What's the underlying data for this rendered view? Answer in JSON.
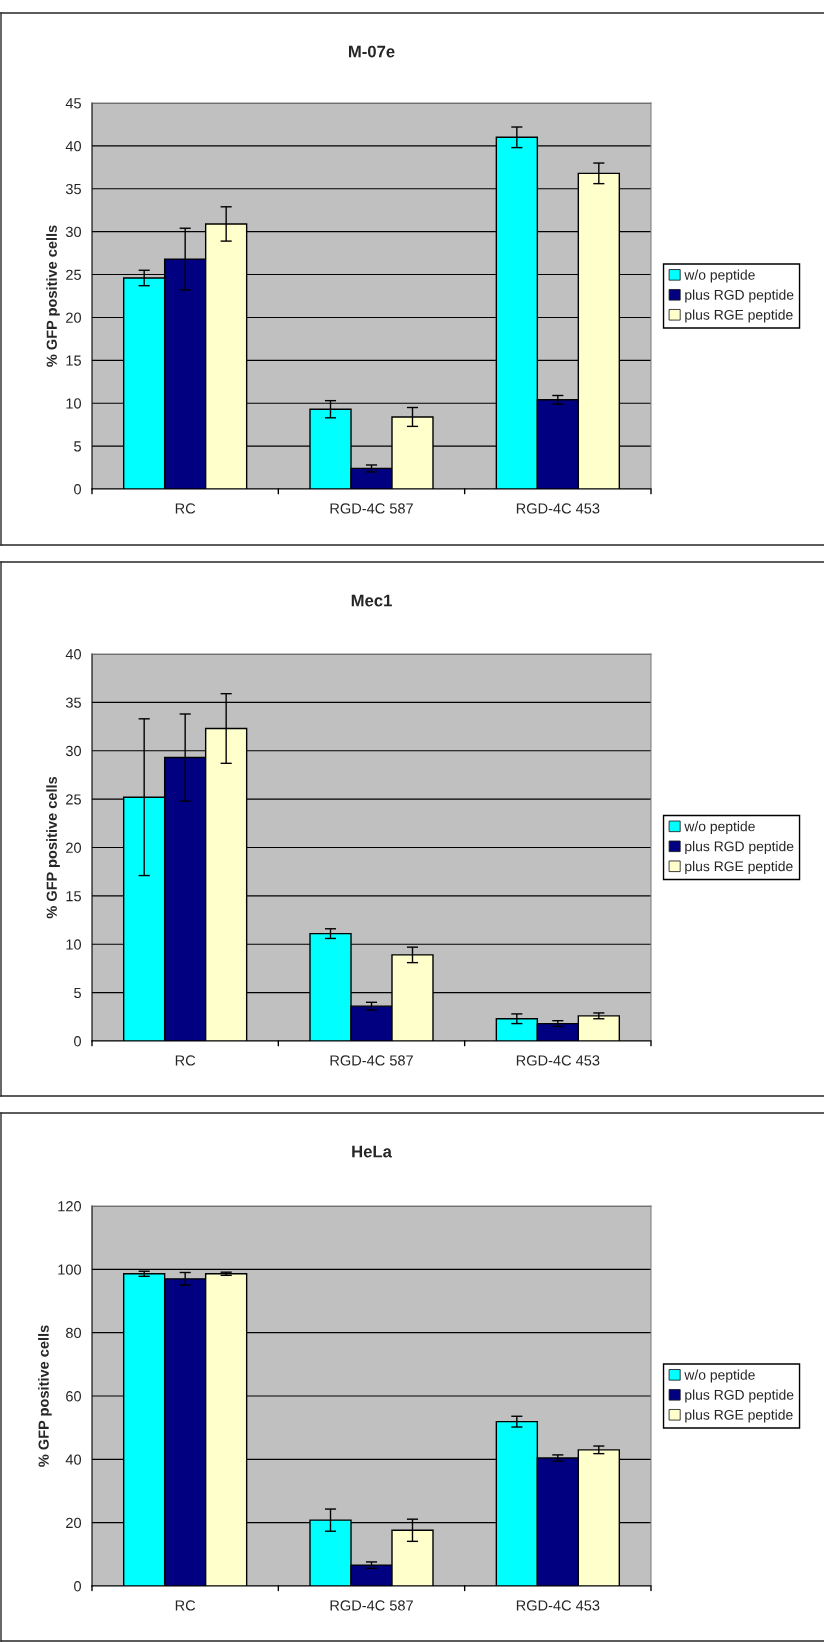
{
  "chart_data": [
    {
      "type": "bar",
      "title": "M-07e",
      "ylabel": "% GFP positive cells",
      "categories": [
        "RC",
        "RGD-4C 587",
        "RGD-4C 453"
      ],
      "ylim": [
        0,
        45
      ],
      "yticks": [
        0,
        5,
        10,
        15,
        20,
        25,
        30,
        35,
        40,
        45
      ],
      "grid": "y",
      "legend": "right",
      "series": [
        {
          "name": "w/o peptide",
          "color": "#00ffff",
          "values": [
            24.6,
            9.3,
            41.0
          ],
          "errors": [
            0.9,
            1.0,
            1.2
          ]
        },
        {
          "name": "plus RGD peptide",
          "color": "#000080",
          "values": [
            26.8,
            2.4,
            10.4
          ],
          "errors": [
            3.6,
            0.4,
            0.5
          ]
        },
        {
          "name": "plus RGE peptide",
          "color": "#ffffcc",
          "values": [
            30.9,
            8.4,
            36.8
          ],
          "errors": [
            2.0,
            1.1,
            1.2
          ]
        }
      ]
    },
    {
      "type": "bar",
      "title": "Mec1",
      "ylabel": "% GFP positive cells",
      "categories": [
        "RC",
        "RGD-4C 587",
        "RGD-4C 453"
      ],
      "ylim": [
        0,
        40
      ],
      "yticks": [
        0,
        5,
        10,
        15,
        20,
        25,
        30,
        35,
        40
      ],
      "grid": "y",
      "legend": "right",
      "series": [
        {
          "name": "w/o peptide",
          "color": "#00ffff",
          "values": [
            25.2,
            11.1,
            2.3
          ],
          "errors": [
            8.1,
            0.5,
            0.5
          ]
        },
        {
          "name": "plus RGD peptide",
          "color": "#000080",
          "values": [
            29.3,
            3.6,
            1.8
          ],
          "errors": [
            4.5,
            0.4,
            0.3
          ]
        },
        {
          "name": "plus RGE peptide",
          "color": "#ffffcc",
          "values": [
            32.3,
            8.9,
            2.6
          ],
          "errors": [
            3.6,
            0.8,
            0.3
          ]
        }
      ]
    },
    {
      "type": "bar",
      "title": "HeLa",
      "ylabel": "% GFP positive cells",
      "categories": [
        "RC",
        "RGD-4C 587",
        "RGD-4C 453"
      ],
      "ylim": [
        0,
        120
      ],
      "yticks": [
        0,
        20,
        40,
        60,
        80,
        100,
        120
      ],
      "grid": "y",
      "legend": "right",
      "series": [
        {
          "name": "w/o peptide",
          "color": "#00ffff",
          "values": [
            98.6,
            20.8,
            51.9
          ],
          "errors": [
            0.8,
            3.5,
            1.7
          ]
        },
        {
          "name": "plus RGD peptide",
          "color": "#000080",
          "values": [
            97.0,
            6.6,
            40.4
          ],
          "errors": [
            2.0,
            1.0,
            1.0
          ]
        },
        {
          "name": "plus RGE peptide",
          "color": "#ffffcc",
          "values": [
            98.6,
            17.6,
            43.0
          ],
          "errors": [
            0.5,
            3.5,
            1.2
          ]
        }
      ]
    }
  ]
}
